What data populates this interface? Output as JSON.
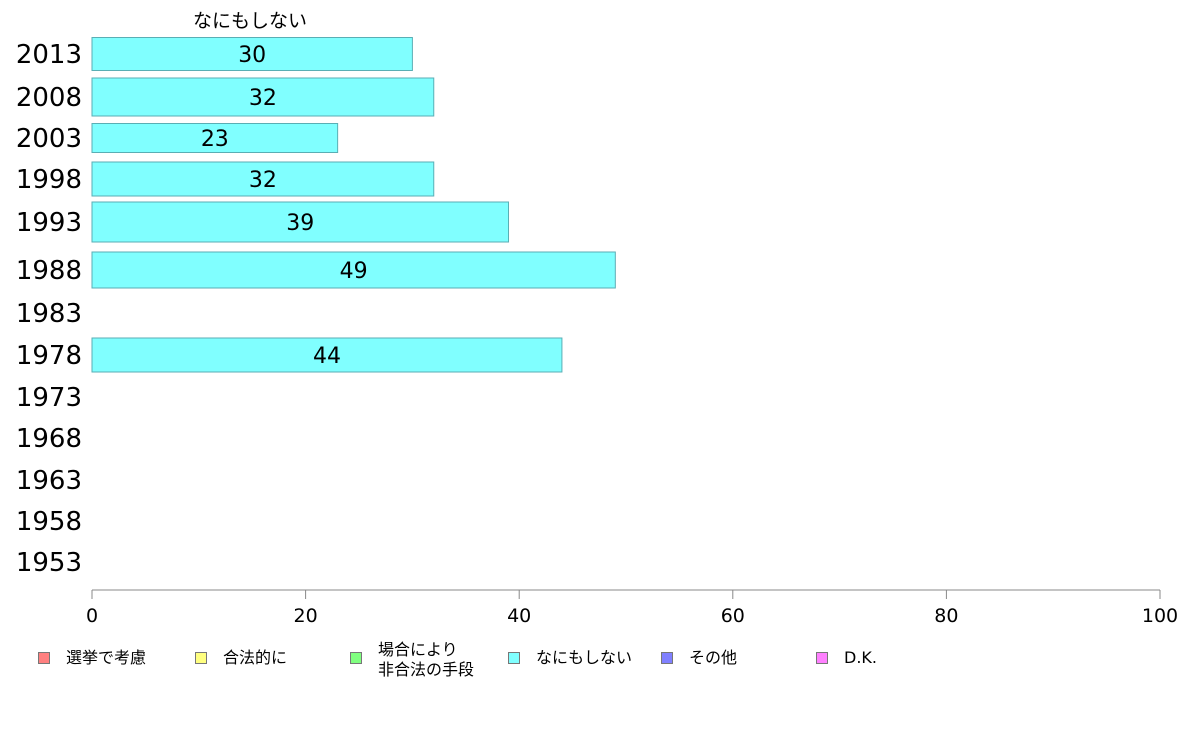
{
  "chart_data": {
    "type": "bar",
    "orientation": "horizontal",
    "title": "なにもしない",
    "categories": [
      "2013",
      "2008",
      "2003",
      "1998",
      "1993",
      "1988",
      "1983",
      "1978",
      "1973",
      "1968",
      "1963",
      "1958",
      "1953"
    ],
    "series": [
      {
        "name": "なにもしない",
        "color": "#80ffff",
        "values": [
          30,
          32,
          23,
          32,
          39,
          49,
          null,
          44,
          null,
          null,
          null,
          null,
          null
        ]
      }
    ],
    "xlim": [
      0,
      100
    ],
    "xticks": [
      0,
      20,
      40,
      60,
      80,
      100
    ],
    "xlabel": "",
    "ylabel": "",
    "grid": false,
    "legend_position": "bottom",
    "legend": [
      {
        "label": "選挙で考慮",
        "color": "#ff8080"
      },
      {
        "label": "合法的に",
        "color": "#ffff80"
      },
      {
        "label": "場合により\n非合法の手段",
        "color": "#80ff80"
      },
      {
        "label": "なにもしない",
        "color": "#80ffff"
      },
      {
        "label": "その他",
        "color": "#8080ff"
      },
      {
        "label": "D.K.",
        "color": "#ff80ff"
      }
    ]
  }
}
